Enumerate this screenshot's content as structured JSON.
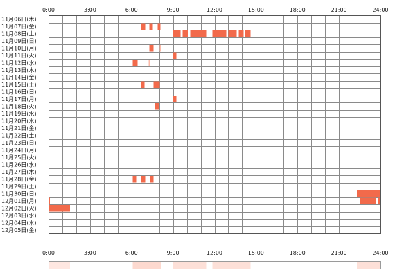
{
  "chart_data": {
    "type": "heatmap",
    "x_axis": {
      "min_hours": 0,
      "max_hours": 24,
      "tick_labels": [
        "0:00",
        "3:00",
        "6:00",
        "9:00",
        "12:00",
        "15:00",
        "18:00",
        "21:00",
        "24:00"
      ]
    },
    "rows": [
      "11月06日(木)",
      "11月07日(金)",
      "11月08日(土)",
      "11月09日(日)",
      "11月10日(月)",
      "11月11日(火)",
      "11月12日(水)",
      "11月13日(木)",
      "11月14日(金)",
      "11月15日(土)",
      "11月16日(日)",
      "11月17日(月)",
      "11月18日(火)",
      "11月19日(水)",
      "11月20日(木)",
      "11月21日(金)",
      "11月22日(土)",
      "11月23日(日)",
      "11月24日(月)",
      "11月25日(火)",
      "11月26日(水)",
      "11月27日(木)",
      "11月28日(金)",
      "11月29日(土)",
      "11月30日(日)",
      "12月01日(月)",
      "12月02日(火)",
      "12月03日(水)",
      "12月04日(木)",
      "12月05日(金)"
    ],
    "active_color": "#f26a4b",
    "light_color": "#fbbaa8",
    "grid_color": "#8a8a8a",
    "intervals": [
      {
        "row": 1,
        "start": 6.7,
        "end": 7.0
      },
      {
        "row": 1,
        "start": 7.3,
        "end": 7.55
      },
      {
        "row": 1,
        "start": 7.9,
        "end": 8.1
      },
      {
        "row": 2,
        "start": 9.0,
        "end": 9.55
      },
      {
        "row": 2,
        "start": 9.7,
        "end": 10.1
      },
      {
        "row": 2,
        "start": 10.25,
        "end": 11.4
      },
      {
        "row": 2,
        "start": 11.85,
        "end": 12.85
      },
      {
        "row": 2,
        "start": 13.0,
        "end": 13.6
      },
      {
        "row": 2,
        "start": 13.75,
        "end": 14.1
      },
      {
        "row": 2,
        "start": 14.2,
        "end": 14.6
      },
      {
        "row": 4,
        "start": 7.3,
        "end": 7.6
      },
      {
        "row": 4,
        "start": 8.05,
        "end": 8.15,
        "light": true
      },
      {
        "row": 5,
        "start": 9.0,
        "end": 9.25
      },
      {
        "row": 6,
        "start": 6.1,
        "end": 6.45
      },
      {
        "row": 6,
        "start": 7.25,
        "end": 7.35,
        "light": true
      },
      {
        "row": 9,
        "start": 6.7,
        "end": 6.95
      },
      {
        "row": 9,
        "start": 7.6,
        "end": 8.05
      },
      {
        "row": 11,
        "start": 9.0,
        "end": 9.25
      },
      {
        "row": 12,
        "start": 7.7,
        "end": 8.0
      },
      {
        "row": 22,
        "start": 6.1,
        "end": 6.35
      },
      {
        "row": 22,
        "start": 6.7,
        "end": 7.0
      },
      {
        "row": 22,
        "start": 7.35,
        "end": 7.6
      },
      {
        "row": 24,
        "start": 22.3,
        "end": 24.0
      },
      {
        "row": 25,
        "start": 22.5,
        "end": 23.7
      },
      {
        "row": 25,
        "start": 23.85,
        "end": 24.0
      },
      {
        "row": 25,
        "start": 0.0,
        "end": 0.1
      },
      {
        "row": 26,
        "start": 0.0,
        "end": 1.55
      }
    ],
    "summary_bands": [
      {
        "start": 6.1,
        "end": 8.15,
        "opacity": 0.55
      },
      {
        "start": 9.0,
        "end": 11.4,
        "opacity": 0.45
      },
      {
        "start": 11.85,
        "end": 14.6,
        "opacity": 0.45
      },
      {
        "start": 22.3,
        "end": 24.0,
        "opacity": 0.45
      },
      {
        "start": 0.0,
        "end": 1.55,
        "opacity": 0.35
      }
    ]
  }
}
